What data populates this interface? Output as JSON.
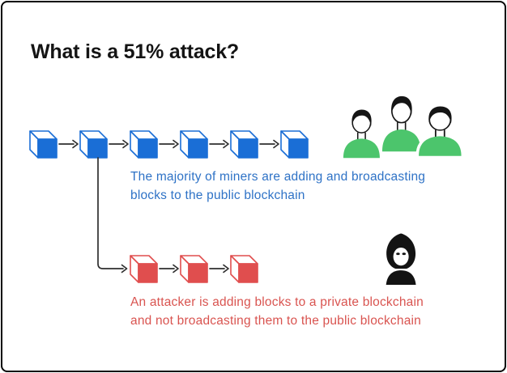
{
  "title": {
    "text": "What is a 51% attack?",
    "color": "#141414"
  },
  "diagram": {
    "public_chain": {
      "label": "public blockchain blocks",
      "block_count": 6,
      "block_color": "#1a6ed6",
      "caption": {
        "lines": [
          "The majority of miners are adding and broadcasting",
          "blocks to the public blockchain"
        ],
        "color": "#2e72c6"
      }
    },
    "private_chain": {
      "label": "private blockchain blocks",
      "block_count": 3,
      "block_color": "#e04e4e",
      "caption": {
        "lines": [
          "An attacker is adding blocks to a private blockchain",
          "and not broadcasting them to the public blockchain"
        ],
        "color": "#d95450"
      }
    },
    "icons": {
      "miners": {
        "name": "miners-icon",
        "shirt_color": "#4cc56c",
        "hair_color": "#151515"
      },
      "attacker": {
        "name": "attacker-icon",
        "color": "#131313"
      }
    },
    "connector_color": "#2f2f2f"
  }
}
